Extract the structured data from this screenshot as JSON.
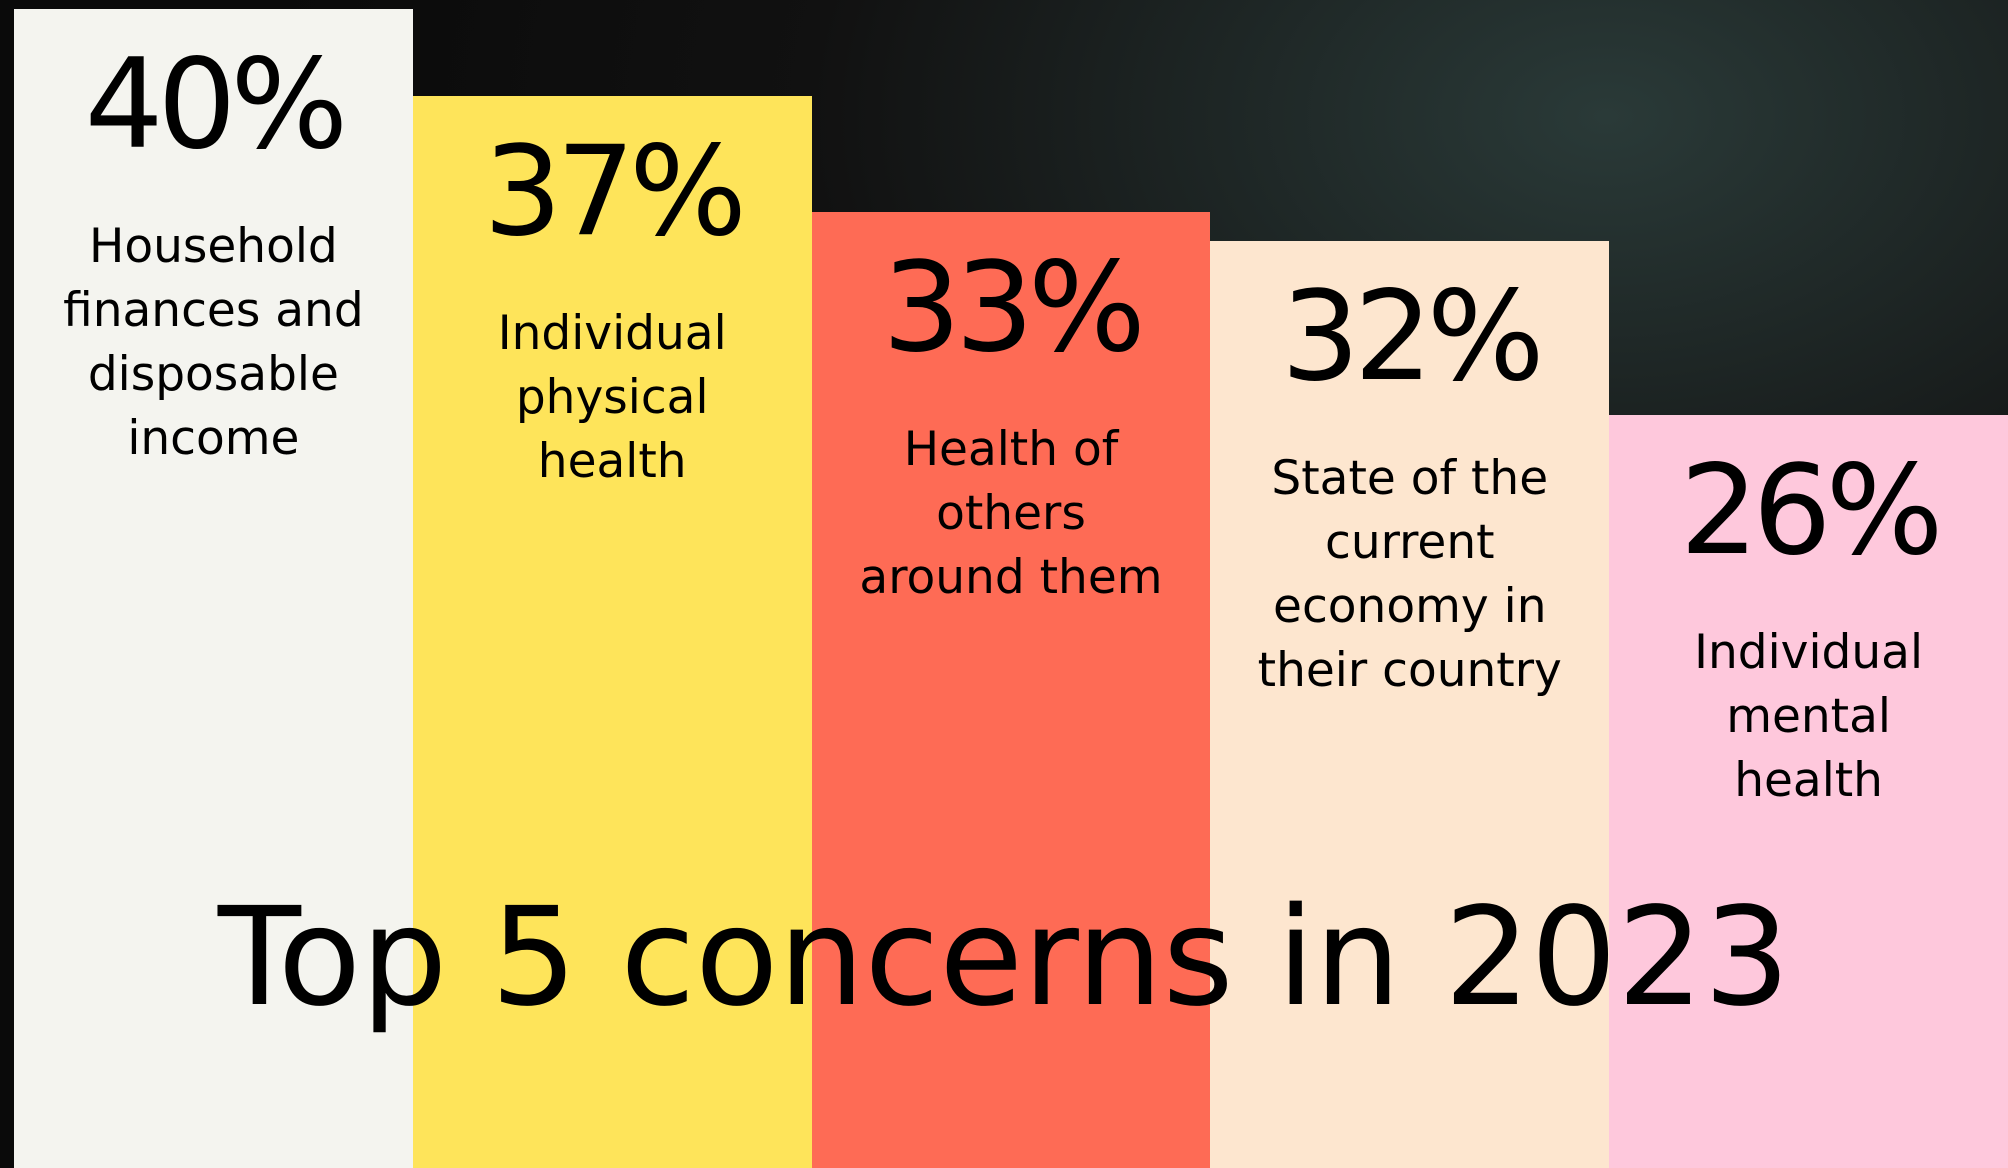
{
  "chart_data": {
    "type": "bar",
    "title": "Top 5 concerns in 2023",
    "categories": [
      "Household finances and disposable income",
      "Individual physical health",
      "Health of others around them",
      "State of the current economy in their country",
      "Individual mental health"
    ],
    "values": [
      40,
      37,
      33,
      32,
      26
    ],
    "value_labels": [
      "40%",
      "37%",
      "33%",
      "32%",
      "26%"
    ],
    "colors": [
      "#f4f4ef",
      "#fee45a",
      "#fe6b55",
      "#fde6cf",
      "#fec8dc"
    ],
    "ylim": [
      0,
      40
    ]
  }
}
